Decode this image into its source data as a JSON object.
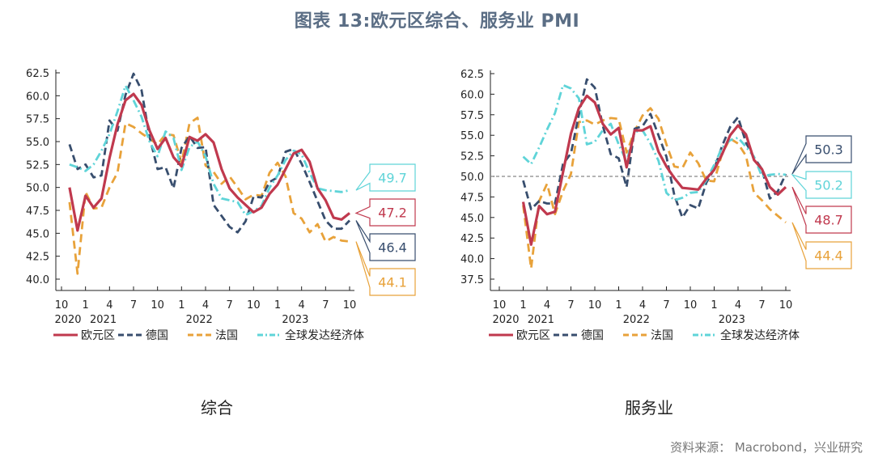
{
  "title": "图表 13:欧元区综合、服务业 PMI",
  "source": "资料来源： Macrobond，兴业研究",
  "colors": {
    "euro": "#c0394e",
    "germany": "#384e6e",
    "france": "#e8a23a",
    "global": "#5fd4d8",
    "title": "#5b6e85"
  },
  "chart_data": [
    {
      "type": "line",
      "subtitle": "综合",
      "ylim": [
        40.0,
        62.5
      ],
      "yticks": [
        "62.5",
        "60.0",
        "57.5",
        "55.0",
        "52.5",
        "50.0",
        "47.5",
        "45.0",
        "42.5",
        "40.0"
      ],
      "xticks": [
        "10",
        "1",
        "4",
        "7",
        "10",
        "1",
        "4",
        "7",
        "10",
        "1",
        "4",
        "7",
        "10"
      ],
      "years": [
        "2020",
        "2021",
        "2022",
        "2023"
      ],
      "reference_line": null,
      "series": [
        {
          "name": "欧元区",
          "key": "euro",
          "values": [
            50.0,
            45.3,
            49.1,
            47.8,
            48.8,
            53.2,
            56.9,
            59.5,
            60.2,
            59.0,
            56.2,
            54.2,
            55.4,
            53.3,
            52.3,
            55.5,
            55.1,
            55.8,
            54.9,
            52.0,
            49.9,
            48.9,
            48.1,
            47.3,
            47.8,
            49.3,
            50.3,
            52.0,
            53.7,
            54.1,
            52.8,
            49.9,
            48.6,
            46.7,
            46.5,
            47.2
          ]
        },
        {
          "name": "德国",
          "key": "germany",
          "values": [
            54.7,
            52.0,
            52.5,
            51.1,
            51.3,
            57.3,
            56.2,
            60.1,
            62.4,
            60.6,
            55.5,
            52.0,
            52.2,
            49.9,
            54.3,
            55.6,
            54.3,
            54.4,
            48.1,
            46.9,
            45.7,
            45.1,
            46.3,
            49.0,
            48.9,
            50.6,
            51.1,
            53.9,
            54.2,
            52.6,
            50.6,
            48.5,
            46.4,
            45.5,
            45.5,
            46.4
          ]
        },
        {
          "name": "法国",
          "key": "france",
          "values": [
            48.4,
            40.6,
            49.5,
            47.7,
            47.8,
            50.0,
            51.6,
            57.0,
            56.6,
            55.9,
            55.3,
            54.7,
            55.8,
            55.7,
            52.7,
            57.0,
            57.6,
            52.4,
            51.7,
            50.4,
            51.2,
            50.0,
            48.7,
            49.2,
            49.1,
            51.6,
            52.7,
            51.2,
            47.2,
            46.6,
            45.1,
            46.0,
            44.1,
            44.6,
            44.2,
            44.1
          ]
        },
        {
          "name": "全球发达经济体",
          "key": "global",
          "values": [
            52.5,
            52.2,
            51.8,
            52.5,
            54.0,
            55.8,
            58.3,
            61.1,
            59.5,
            57.7,
            55.0,
            53.4,
            56.1,
            55.4,
            51.9,
            54.4,
            55.0,
            53.4,
            50.4,
            48.8,
            48.6,
            48.4,
            47.0,
            47.4,
            48.0,
            50.0,
            51.3,
            53.0,
            54.0,
            53.6,
            51.6,
            49.9,
            49.7,
            49.6,
            49.5,
            49.7
          ]
        }
      ],
      "callouts": [
        {
          "key": "global",
          "value": "49.7"
        },
        {
          "key": "euro",
          "value": "47.2"
        },
        {
          "key": "germany",
          "value": "46.4"
        },
        {
          "key": "france",
          "value": "44.1"
        }
      ]
    },
    {
      "type": "line",
      "subtitle": "服务业",
      "ylim": [
        37.5,
        62.5
      ],
      "yticks": [
        "62.5",
        "60.0",
        "57.5",
        "55.0",
        "52.5",
        "50.0",
        "47.5",
        "45.0",
        "42.5",
        "40.0",
        "37.5"
      ],
      "xticks": [
        "10",
        "1",
        "4",
        "7",
        "10",
        "1",
        "4",
        "7",
        "10",
        "1",
        "4",
        "7",
        "10"
      ],
      "years": [
        "2020",
        "2021",
        "2022",
        "2023"
      ],
      "reference_line": 50.0,
      "series": [
        {
          "name": "欧元区",
          "key": "euro",
          "values": [
            46.9,
            41.7,
            46.4,
            45.4,
            45.7,
            50.5,
            55.2,
            58.3,
            59.8,
            59.0,
            56.4,
            55.1,
            55.9,
            51.1,
            55.6,
            55.6,
            56.1,
            53.0,
            51.2,
            49.8,
            48.6,
            48.5,
            48.4,
            49.7,
            50.8,
            52.7,
            55.0,
            56.2,
            55.1,
            52.0,
            50.9,
            48.7,
            47.8,
            48.7
          ]
        },
        {
          "name": "德国",
          "key": "germany",
          "values": [
            49.5,
            46.0,
            47.0,
            46.7,
            46.7,
            51.5,
            52.8,
            57.5,
            61.8,
            60.8,
            56.2,
            52.7,
            52.2,
            48.7,
            55.8,
            56.1,
            57.6,
            55.0,
            52.4,
            47.7,
            45.0,
            46.5,
            46.1,
            49.2,
            50.9,
            53.7,
            56.0,
            57.2,
            54.1,
            52.3,
            50.9,
            47.3,
            48.2,
            50.3
          ]
        },
        {
          "name": "法国",
          "key": "france",
          "values": [
            46.5,
            38.8,
            47.0,
            49.1,
            45.4,
            48.2,
            50.3,
            56.6,
            56.8,
            56.3,
            56.8,
            57.1,
            57.0,
            52.9,
            55.5,
            57.4,
            58.3,
            57.0,
            53.9,
            51.2,
            51.0,
            52.9,
            51.6,
            49.5,
            49.4,
            52.8,
            54.6,
            54.0,
            52.5,
            48.0,
            47.1,
            46.0,
            45.2,
            44.4
          ]
        },
        {
          "name": "全球发达经济体",
          "key": "global",
          "values": [
            52.4,
            51.5,
            53.5,
            55.7,
            57.7,
            61.1,
            60.7,
            59.5,
            53.9,
            54.2,
            55.6,
            56.4,
            53.9,
            51.8,
            55.4,
            55.6,
            54.0,
            51.9,
            48.0,
            47.1,
            47.4,
            48.0,
            48.1,
            49.5,
            51.4,
            53.5,
            54.4,
            54.7,
            53.6,
            52.4,
            50.0,
            50.2,
            50.3,
            50.2
          ]
        }
      ],
      "callouts": [
        {
          "key": "germany",
          "value": "50.3"
        },
        {
          "key": "global",
          "value": "50.2"
        },
        {
          "key": "euro",
          "value": "48.7"
        },
        {
          "key": "france",
          "value": "44.4"
        }
      ]
    }
  ]
}
